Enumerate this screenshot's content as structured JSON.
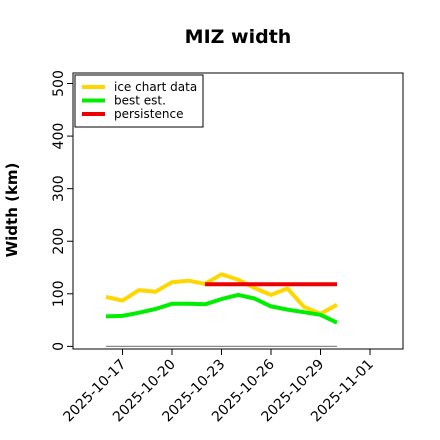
{
  "chart_data": {
    "type": "line",
    "title": "MIZ width",
    "xlabel": "",
    "ylabel": "Width (km)",
    "xlim": [
      "2025-10-14",
      "2025-11-03"
    ],
    "ylim": [
      -5,
      520
    ],
    "yticks": [
      0,
      100,
      200,
      300,
      400,
      500
    ],
    "xticks": [
      "2025-10-17",
      "2025-10-20",
      "2025-10-23",
      "2025-10-26",
      "2025-10-29",
      "2025-11-01"
    ],
    "grid": false,
    "legend_position": "top-left",
    "baseline": {
      "value": 0,
      "from": "2025-10-16",
      "to": "2025-10-30",
      "color": "#888888"
    },
    "series": [
      {
        "name": "ice chart data",
        "color": "#FFD700",
        "x": [
          "2025-10-16",
          "2025-10-17",
          "2025-10-18",
          "2025-10-19",
          "2025-10-20",
          "2025-10-21",
          "2025-10-22",
          "2025-10-23",
          "2025-10-24",
          "2025-10-25",
          "2025-10-26",
          "2025-10-27",
          "2025-10-28",
          "2025-10-29",
          "2025-10-30"
        ],
        "values": [
          94,
          87,
          107,
          104,
          122,
          125,
          119,
          137,
          127,
          111,
          98,
          110,
          75,
          62,
          79
        ]
      },
      {
        "name": "best est.",
        "color": "#00EE00",
        "x": [
          "2025-10-16",
          "2025-10-17",
          "2025-10-18",
          "2025-10-19",
          "2025-10-20",
          "2025-10-21",
          "2025-10-22",
          "2025-10-23",
          "2025-10-24",
          "2025-10-25",
          "2025-10-26",
          "2025-10-27",
          "2025-10-28",
          "2025-10-29",
          "2025-10-30"
        ],
        "values": [
          57,
          58,
          64,
          71,
          81,
          81,
          80,
          90,
          98,
          91,
          76,
          70,
          65,
          60,
          45
        ]
      },
      {
        "name": "persistence",
        "color": "#EE0000",
        "x": [
          "2025-10-22",
          "2025-10-30"
        ],
        "values": [
          118,
          118
        ]
      }
    ]
  }
}
